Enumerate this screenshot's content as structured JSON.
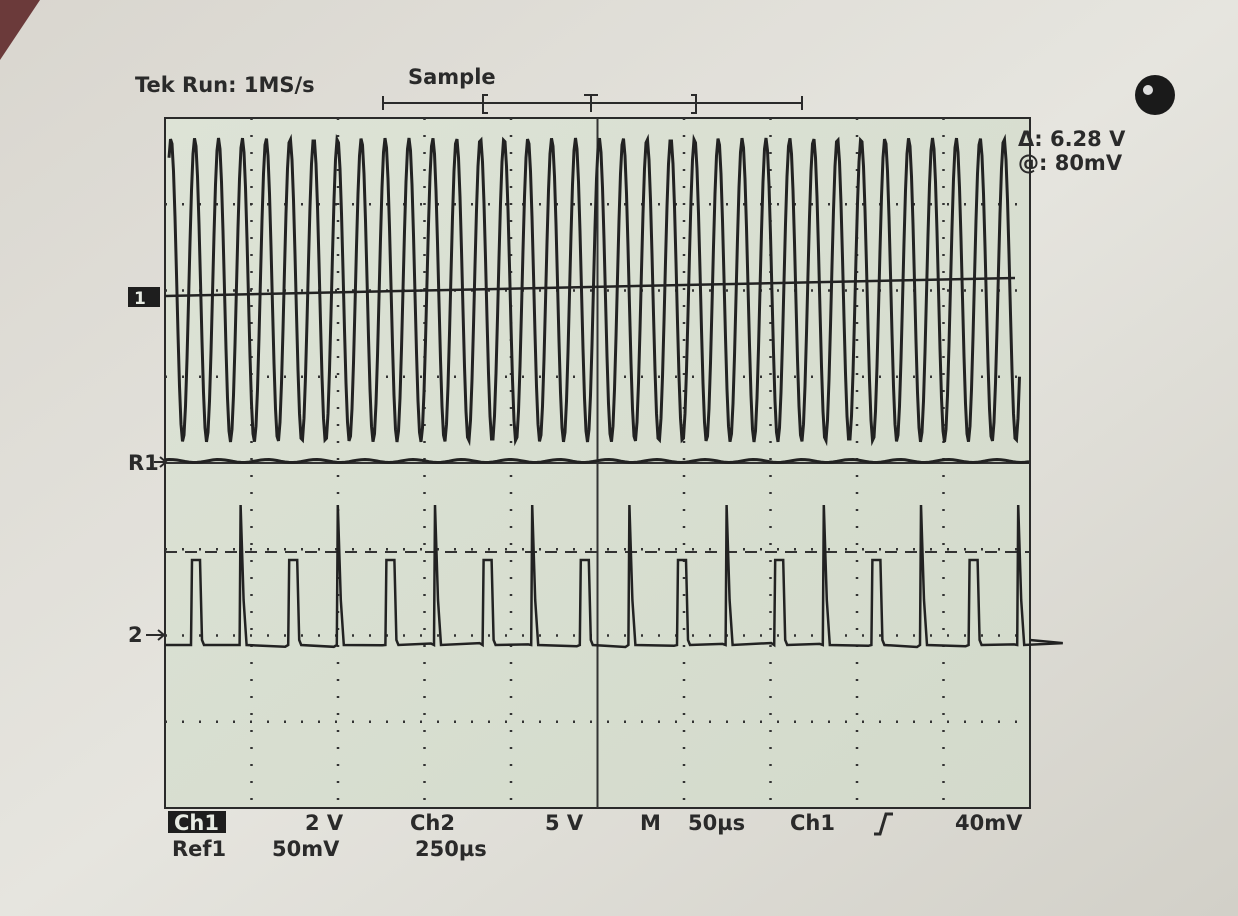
{
  "header": {
    "status": "Tek Run: 1MS/s",
    "mode": "Sample"
  },
  "measurements": {
    "delta": "Δ: 6.28 V",
    "at": "@: 80mV"
  },
  "markers": {
    "ch1": "1",
    "ref1": "R1",
    "ch2": "2"
  },
  "footer": {
    "ch1": "Ch1",
    "ch1_scale": "2 V",
    "ch2": "Ch2",
    "ch2_scale": "5 V",
    "timebase_label": "M",
    "timebase": "50µs",
    "trigger_source": "Ch1",
    "trigger_level": "40mV",
    "ref1": "Ref1",
    "ref1_scale": "50mV",
    "ref1_time": "250µs"
  }
}
